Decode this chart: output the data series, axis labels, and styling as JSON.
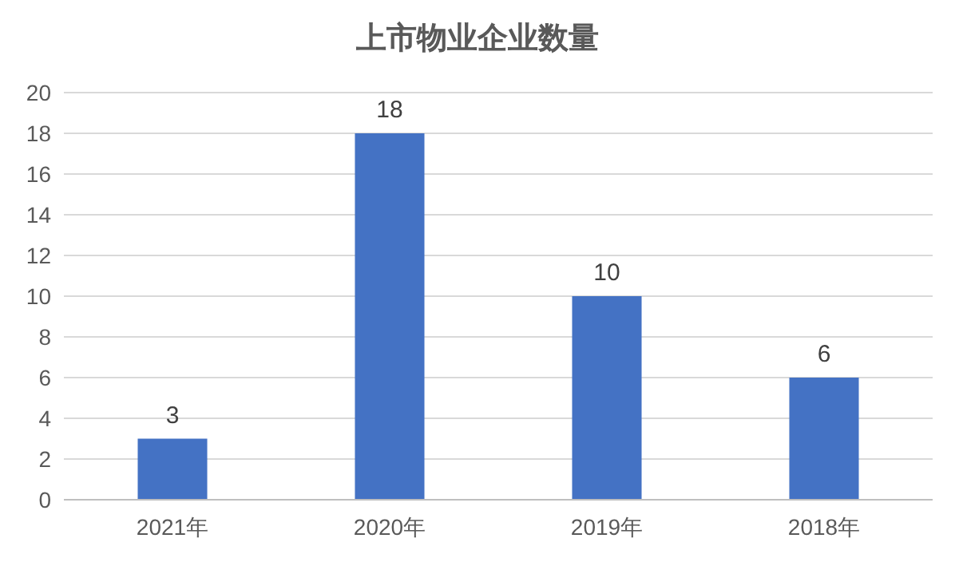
{
  "chart_data": {
    "type": "bar",
    "title": "上市物业企业数量",
    "categories": [
      "2021年",
      "2020年",
      "2019年",
      "2018年"
    ],
    "values": [
      3,
      18,
      10,
      6
    ],
    "color": "#4472c4",
    "ylim": [
      0,
      20
    ],
    "yticks": [
      0,
      2,
      4,
      6,
      8,
      10,
      12,
      14,
      16,
      18,
      20
    ],
    "grid": "y",
    "data_labels": true
  }
}
